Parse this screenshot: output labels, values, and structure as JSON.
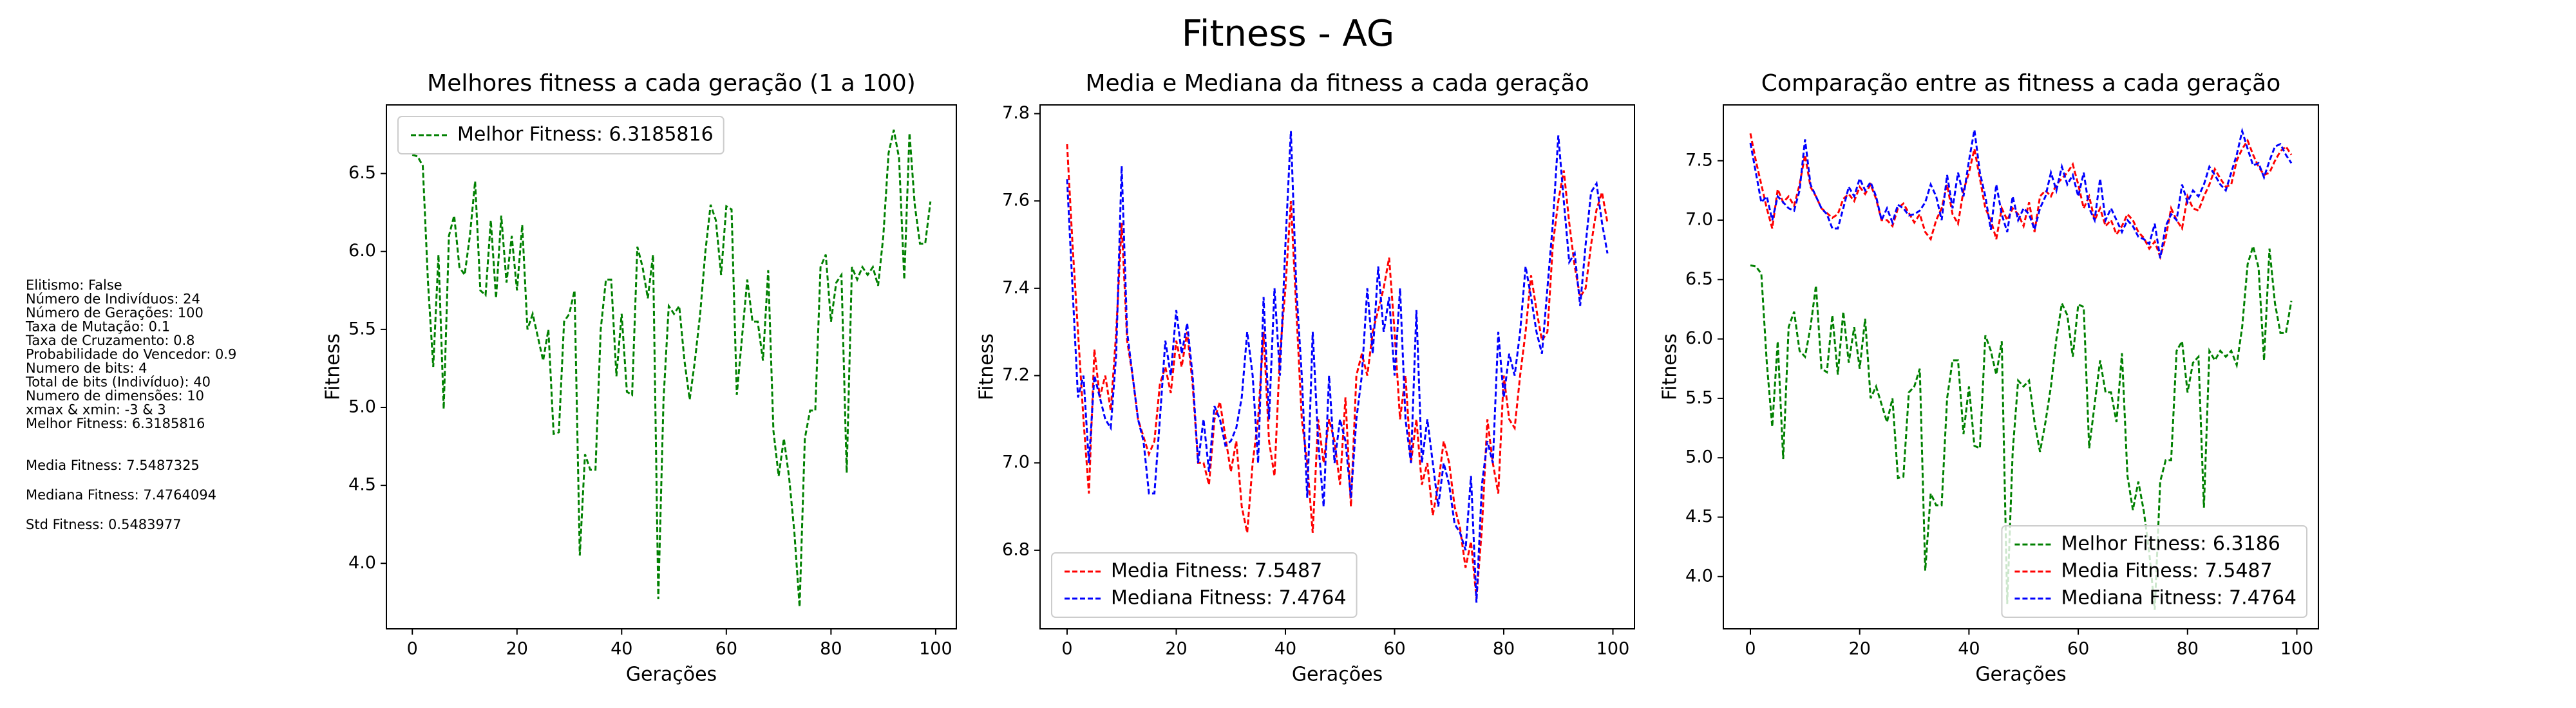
{
  "title": "Fitness - AG",
  "info": [
    "Elitismo: False",
    "Número de Indivíduos: 24",
    "Número de Gerações: 100",
    "Taxa de Mutação: 0.1",
    "Taxa de Cruzamento: 0.8",
    "Probabilidade do Vencedor: 0.9",
    "Numero de bits: 4",
    "Total de bits (Indivíduo): 40",
    "Numero de dimensões: 10",
    "xmax & xmin: -3 & 3",
    "Melhor Fitness: 6.3185816",
    "Media Fitness: 7.5487325",
    "Mediana Fitness: 7.4764094",
    "Std Fitness: 0.5483977"
  ],
  "chart_data": [
    {
      "type": "line",
      "title": "Melhores fitness a cada geração (1 a 100)",
      "x_label": "Gerações",
      "y_label": "Fitness",
      "legend": "upper left",
      "xlim": [
        -4.95,
        103.95
      ],
      "xticks": [
        0,
        20,
        40,
        60,
        80,
        100
      ],
      "ylim": [
        3.58,
        6.94
      ],
      "yticks": [
        {
          "value": 4,
          "label": "4.0"
        },
        4.5,
        {
          "value": 5,
          "label": "5.0"
        },
        5.5,
        {
          "value": 6,
          "label": "6.0"
        },
        6.5
      ],
      "x": [
        0,
        1,
        2,
        3,
        4,
        5,
        6,
        7,
        8,
        9,
        10,
        11,
        12,
        13,
        14,
        15,
        16,
        17,
        18,
        19,
        20,
        21,
        22,
        23,
        24,
        25,
        26,
        27,
        28,
        29,
        30,
        31,
        32,
        33,
        34,
        35,
        36,
        37,
        38,
        39,
        40,
        41,
        42,
        43,
        44,
        45,
        46,
        47,
        48,
        49,
        50,
        51,
        52,
        53,
        54,
        55,
        56,
        57,
        58,
        59,
        60,
        61,
        62,
        63,
        64,
        65,
        66,
        67,
        68,
        69,
        70,
        71,
        72,
        73,
        74,
        75,
        76,
        77,
        78,
        79,
        80,
        81,
        82,
        83,
        84,
        85,
        86,
        87,
        88,
        89,
        90,
        91,
        92,
        93,
        94,
        95,
        96,
        97,
        98,
        99
      ],
      "series": [
        {
          "name": "Melhor Fitness: 6.3185816",
          "color": "#008000",
          "values": [
            6.62,
            6.61,
            6.55,
            5.8,
            5.26,
            5.98,
            4.99,
            6.1,
            6.23,
            5.9,
            5.85,
            6.1,
            6.45,
            5.75,
            5.72,
            6.2,
            5.7,
            6.23,
            5.8,
            6.1,
            5.75,
            6.17,
            5.5,
            5.6,
            5.45,
            5.3,
            5.5,
            4.83,
            4.84,
            5.55,
            5.6,
            5.75,
            4.05,
            4.7,
            4.6,
            4.6,
            5.5,
            5.82,
            5.82,
            5.2,
            5.6,
            5.1,
            5.08,
            6.03,
            5.9,
            5.7,
            5.98,
            3.77,
            5.05,
            5.65,
            5.6,
            5.65,
            5.3,
            5.05,
            5.3,
            5.6,
            6.0,
            6.3,
            6.2,
            5.85,
            6.29,
            6.27,
            5.08,
            5.45,
            5.82,
            5.55,
            5.55,
            5.3,
            5.88,
            4.85,
            4.56,
            4.8,
            4.55,
            4.2,
            3.72,
            4.8,
            4.98,
            4.98,
            5.9,
            5.98,
            5.55,
            5.8,
            5.85,
            4.58,
            5.9,
            5.82,
            5.9,
            5.85,
            5.9,
            5.78,
            6.1,
            6.63,
            6.78,
            6.6,
            5.82,
            6.76,
            6.3,
            6.05,
            6.05,
            6.32
          ]
        }
      ]
    },
    {
      "type": "line",
      "title": "Media e Mediana da fitness a cada geração",
      "x_label": "Gerações",
      "y_label": "Fitness",
      "legend": "lower left",
      "xlim": [
        -4.95,
        103.95
      ],
      "xticks": [
        0,
        20,
        40,
        60,
        80,
        100
      ],
      "ylim": [
        6.62,
        7.82
      ],
      "yticks": [
        6.8,
        {
          "value": 7,
          "label": "7.0"
        },
        7.2,
        7.4,
        7.6,
        7.8
      ],
      "x": [
        0,
        1,
        2,
        3,
        4,
        5,
        6,
        7,
        8,
        9,
        10,
        11,
        12,
        13,
        14,
        15,
        16,
        17,
        18,
        19,
        20,
        21,
        22,
        23,
        24,
        25,
        26,
        27,
        28,
        29,
        30,
        31,
        32,
        33,
        34,
        35,
        36,
        37,
        38,
        39,
        40,
        41,
        42,
        43,
        44,
        45,
        46,
        47,
        48,
        49,
        50,
        51,
        52,
        53,
        54,
        55,
        56,
        57,
        58,
        59,
        60,
        61,
        62,
        63,
        64,
        65,
        66,
        67,
        68,
        69,
        70,
        71,
        72,
        73,
        74,
        75,
        76,
        77,
        78,
        79,
        80,
        81,
        82,
        83,
        84,
        85,
        86,
        87,
        88,
        89,
        90,
        91,
        92,
        93,
        94,
        95,
        96,
        97,
        98,
        99
      ],
      "series": [
        {
          "name": "Media Fitness: 7.5487",
          "color": "#ff0000",
          "values": [
            7.73,
            7.5,
            7.3,
            7.1,
            6.93,
            7.26,
            7.15,
            7.2,
            7.12,
            7.3,
            7.55,
            7.28,
            7.2,
            7.1,
            7.06,
            7.02,
            7.05,
            7.18,
            7.22,
            7.16,
            7.28,
            7.22,
            7.3,
            7.18,
            7.0,
            7.0,
            6.95,
            7.1,
            7.14,
            7.06,
            6.98,
            7.05,
            6.9,
            6.84,
            7.0,
            7.1,
            7.3,
            7.05,
            6.97,
            7.25,
            7.4,
            7.6,
            7.35,
            7.1,
            7.0,
            6.84,
            7.1,
            7.0,
            7.1,
            7.05,
            6.95,
            7.15,
            6.9,
            7.2,
            7.25,
            7.2,
            7.3,
            7.35,
            7.4,
            7.47,
            7.3,
            7.1,
            7.2,
            7.0,
            7.1,
            6.95,
            7.0,
            6.88,
            6.95,
            7.05,
            7.0,
            6.9,
            6.85,
            6.76,
            6.82,
            6.69,
            6.85,
            7.1,
            7.0,
            6.93,
            7.2,
            7.1,
            7.08,
            7.2,
            7.3,
            7.43,
            7.35,
            7.28,
            7.3,
            7.5,
            7.6,
            7.67,
            7.55,
            7.45,
            7.38,
            7.4,
            7.5,
            7.58,
            7.62,
            7.55
          ]
        },
        {
          "name": "Mediana Fitness: 7.4764",
          "color": "#0000ff",
          "values": [
            7.65,
            7.4,
            7.15,
            7.2,
            7.0,
            7.2,
            7.15,
            7.1,
            7.08,
            7.25,
            7.68,
            7.3,
            7.2,
            7.1,
            7.05,
            6.93,
            6.93,
            7.1,
            7.28,
            7.2,
            7.35,
            7.25,
            7.32,
            7.2,
            7.0,
            7.1,
            6.98,
            7.13,
            7.1,
            7.04,
            7.05,
            7.08,
            7.15,
            7.3,
            7.2,
            7.0,
            7.38,
            7.1,
            7.4,
            7.2,
            7.5,
            7.76,
            7.4,
            7.2,
            6.92,
            7.3,
            7.05,
            6.9,
            7.2,
            7.0,
            7.1,
            7.05,
            6.92,
            7.1,
            7.2,
            7.4,
            7.25,
            7.45,
            7.3,
            7.38,
            7.2,
            7.4,
            7.1,
            7.0,
            7.35,
            7.0,
            7.1,
            7.0,
            6.9,
            7.0,
            6.95,
            6.86,
            6.84,
            6.8,
            6.97,
            6.68,
            6.95,
            7.05,
            7.0,
            7.3,
            7.15,
            7.25,
            7.2,
            7.3,
            7.45,
            7.38,
            7.3,
            7.25,
            7.4,
            7.55,
            7.75,
            7.6,
            7.46,
            7.48,
            7.36,
            7.5,
            7.62,
            7.64,
            7.55,
            7.48
          ]
        }
      ]
    },
    {
      "type": "line",
      "title": "Comparação entre as fitness a cada geração",
      "x_label": "Gerações",
      "y_label": "Fitness",
      "legend": "lower right",
      "xlim": [
        -4.95,
        103.95
      ],
      "xticks": [
        0,
        20,
        40,
        60,
        80,
        100
      ],
      "ylim": [
        3.56,
        7.97
      ],
      "yticks": [
        {
          "value": 4,
          "label": "4.0"
        },
        4.5,
        {
          "value": 5,
          "label": "5.0"
        },
        5.5,
        {
          "value": 6,
          "label": "6.0"
        },
        6.5,
        {
          "value": 7,
          "label": "7.0"
        },
        7.5
      ],
      "x": [
        0,
        1,
        2,
        3,
        4,
        5,
        6,
        7,
        8,
        9,
        10,
        11,
        12,
        13,
        14,
        15,
        16,
        17,
        18,
        19,
        20,
        21,
        22,
        23,
        24,
        25,
        26,
        27,
        28,
        29,
        30,
        31,
        32,
        33,
        34,
        35,
        36,
        37,
        38,
        39,
        40,
        41,
        42,
        43,
        44,
        45,
        46,
        47,
        48,
        49,
        50,
        51,
        52,
        53,
        54,
        55,
        56,
        57,
        58,
        59,
        60,
        61,
        62,
        63,
        64,
        65,
        66,
        67,
        68,
        69,
        70,
        71,
        72,
        73,
        74,
        75,
        76,
        77,
        78,
        79,
        80,
        81,
        82,
        83,
        84,
        85,
        86,
        87,
        88,
        89,
        90,
        91,
        92,
        93,
        94,
        95,
        96,
        97,
        98,
        99
      ],
      "series": [
        {
          "name": "Melhor Fitness: 6.3186",
          "color": "#008000",
          "values": [
            6.62,
            6.61,
            6.55,
            5.8,
            5.26,
            5.98,
            4.99,
            6.1,
            6.23,
            5.9,
            5.85,
            6.1,
            6.45,
            5.75,
            5.72,
            6.2,
            5.7,
            6.23,
            5.8,
            6.1,
            5.75,
            6.17,
            5.5,
            5.6,
            5.45,
            5.3,
            5.5,
            4.83,
            4.84,
            5.55,
            5.6,
            5.75,
            4.05,
            4.7,
            4.6,
            4.6,
            5.5,
            5.82,
            5.82,
            5.2,
            5.6,
            5.1,
            5.08,
            6.03,
            5.9,
            5.7,
            5.98,
            3.77,
            5.05,
            5.65,
            5.6,
            5.65,
            5.3,
            5.05,
            5.3,
            5.6,
            6.0,
            6.3,
            6.2,
            5.85,
            6.29,
            6.27,
            5.08,
            5.45,
            5.82,
            5.55,
            5.55,
            5.3,
            5.88,
            4.85,
            4.56,
            4.8,
            4.55,
            4.2,
            3.72,
            4.8,
            4.98,
            4.98,
            5.9,
            5.98,
            5.55,
            5.8,
            5.85,
            4.58,
            5.9,
            5.82,
            5.9,
            5.85,
            5.9,
            5.78,
            6.1,
            6.63,
            6.78,
            6.6,
            5.82,
            6.76,
            6.3,
            6.05,
            6.05,
            6.32
          ]
        },
        {
          "name": "Media Fitness: 7.5487",
          "color": "#ff0000",
          "values": [
            7.73,
            7.5,
            7.3,
            7.1,
            6.93,
            7.26,
            7.15,
            7.2,
            7.12,
            7.3,
            7.55,
            7.28,
            7.2,
            7.1,
            7.06,
            7.02,
            7.05,
            7.18,
            7.22,
            7.16,
            7.28,
            7.22,
            7.3,
            7.18,
            7.0,
            7.0,
            6.95,
            7.1,
            7.14,
            7.06,
            6.98,
            7.05,
            6.9,
            6.84,
            7.0,
            7.1,
            7.3,
            7.05,
            6.97,
            7.25,
            7.4,
            7.6,
            7.35,
            7.1,
            7.0,
            6.84,
            7.1,
            7.0,
            7.1,
            7.05,
            6.95,
            7.15,
            6.9,
            7.2,
            7.25,
            7.2,
            7.3,
            7.35,
            7.4,
            7.47,
            7.3,
            7.1,
            7.2,
            7.0,
            7.1,
            6.95,
            7.0,
            6.88,
            6.95,
            7.05,
            7.0,
            6.9,
            6.85,
            6.76,
            6.82,
            6.69,
            6.85,
            7.1,
            7.0,
            6.93,
            7.2,
            7.1,
            7.08,
            7.2,
            7.3,
            7.43,
            7.35,
            7.28,
            7.3,
            7.5,
            7.6,
            7.67,
            7.55,
            7.45,
            7.38,
            7.4,
            7.5,
            7.58,
            7.62,
            7.55
          ]
        },
        {
          "name": "Mediana Fitness: 7.4764",
          "color": "#0000ff",
          "values": [
            7.65,
            7.4,
            7.15,
            7.2,
            7.0,
            7.2,
            7.15,
            7.1,
            7.08,
            7.25,
            7.68,
            7.3,
            7.2,
            7.1,
            7.05,
            6.93,
            6.93,
            7.1,
            7.28,
            7.2,
            7.35,
            7.25,
            7.32,
            7.2,
            7.0,
            7.1,
            6.98,
            7.13,
            7.1,
            7.04,
            7.05,
            7.08,
            7.15,
            7.3,
            7.2,
            7.0,
            7.38,
            7.1,
            7.4,
            7.2,
            7.5,
            7.76,
            7.4,
            7.2,
            6.92,
            7.3,
            7.05,
            6.9,
            7.2,
            7.0,
            7.1,
            7.05,
            6.92,
            7.1,
            7.2,
            7.4,
            7.25,
            7.45,
            7.3,
            7.38,
            7.2,
            7.4,
            7.1,
            7.0,
            7.35,
            7.0,
            7.1,
            7.0,
            6.9,
            7.0,
            6.95,
            6.86,
            6.84,
            6.8,
            6.97,
            6.68,
            6.95,
            7.05,
            7.0,
            7.3,
            7.15,
            7.25,
            7.2,
            7.3,
            7.45,
            7.38,
            7.3,
            7.25,
            7.4,
            7.55,
            7.75,
            7.6,
            7.46,
            7.48,
            7.36,
            7.5,
            7.62,
            7.64,
            7.55,
            7.48
          ]
        }
      ]
    }
  ]
}
